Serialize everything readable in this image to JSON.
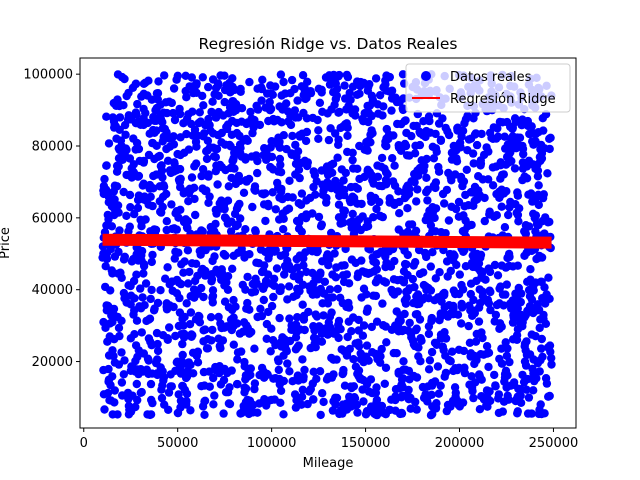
{
  "chart_data": {
    "type": "scatter",
    "title": "Regresión Ridge vs. Datos Reales",
    "xlabel": "Mileage",
    "ylabel": "Price",
    "xlim": [
      -2000,
      262000
    ],
    "ylim": [
      1500,
      104500
    ],
    "x_ticks": [
      {
        "value": 0,
        "label": "0"
      },
      {
        "value": 50000,
        "label": "50000"
      },
      {
        "value": 100000,
        "label": "100000"
      },
      {
        "value": 150000,
        "label": "150000"
      },
      {
        "value": 200000,
        "label": "200000"
      },
      {
        "value": 250000,
        "label": "250000"
      }
    ],
    "y_ticks": [
      {
        "value": 20000,
        "label": "20000"
      },
      {
        "value": 40000,
        "label": "40000"
      },
      {
        "value": 60000,
        "label": "60000"
      },
      {
        "value": 80000,
        "label": "80000"
      },
      {
        "value": 100000,
        "label": "100000"
      }
    ],
    "grid": false,
    "legend_position": "top-right",
    "series": [
      {
        "name": "Datos reales",
        "kind": "scatter",
        "color": "#0000ff",
        "x_range": [
          10000,
          249000
        ],
        "y_range": [
          5000,
          100000
        ],
        "n_points": 2500
      },
      {
        "name": "Regresión Ridge",
        "kind": "line",
        "color": "#ff0000",
        "x": [
          10000,
          249000
        ],
        "y": [
          53900,
          53100
        ]
      }
    ]
  }
}
